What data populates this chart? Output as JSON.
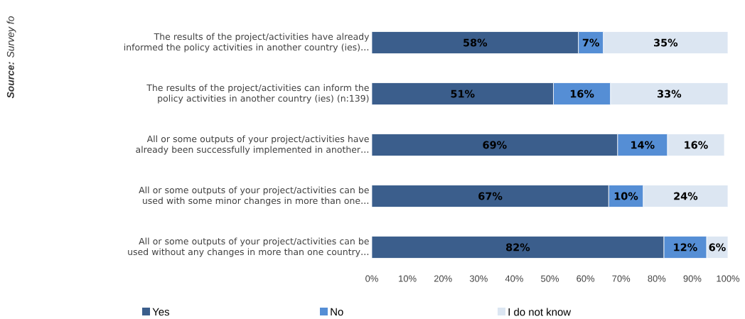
{
  "chart_data": {
    "type": "bar",
    "orientation": "horizontal",
    "stacked": true,
    "legend": "bottom",
    "categories": [
      "The results of the project/activities have already informed the policy activities in another country (ies)…",
      "The results of the project/activities can inform the policy activities in another country (ies) (n:139)",
      "All or some outputs of your project/activities have already been successfully implemented in another…",
      "All or some outputs of your project/activities can be used with some minor changes in more than one…",
      "All or some outputs of your project/activities can be used without any changes in more than one country…"
    ],
    "series": [
      {
        "name": "Yes",
        "color": "#3b5e8c",
        "values": [
          58,
          51,
          69,
          66.5,
          82
        ],
        "value_labels": [
          "58%",
          "51%",
          "69%",
          "67%",
          "82%"
        ]
      },
      {
        "name": "No",
        "color": "#558ed5",
        "values": [
          7,
          16,
          14,
          9.7,
          12
        ],
        "value_labels": [
          "7%",
          "16%",
          "14%",
          "10%",
          "12%"
        ]
      },
      {
        "name": "I do not know",
        "color": "#dce6f2",
        "values": [
          35,
          33,
          16,
          23.8,
          6
        ],
        "value_labels": [
          "35%",
          "33%",
          "16%",
          "24%",
          "6%"
        ]
      }
    ],
    "xlim": [
      0,
      100
    ],
    "xticks": [
      {
        "value": 0,
        "label": "0%"
      },
      {
        "value": 10,
        "label": "10%"
      },
      {
        "value": 20,
        "label": "20%"
      },
      {
        "value": 30,
        "label": "30%"
      },
      {
        "value": 40,
        "label": "40%"
      },
      {
        "value": 50,
        "label": "50%"
      },
      {
        "value": 60,
        "label": "60%"
      },
      {
        "value": 70,
        "label": "70%"
      },
      {
        "value": 80,
        "label": "80%"
      },
      {
        "value": 90,
        "label": "90%"
      },
      {
        "value": 100,
        "label": "100%"
      }
    ],
    "annotations": [
      "**Source:** Survey fo"
    ]
  }
}
